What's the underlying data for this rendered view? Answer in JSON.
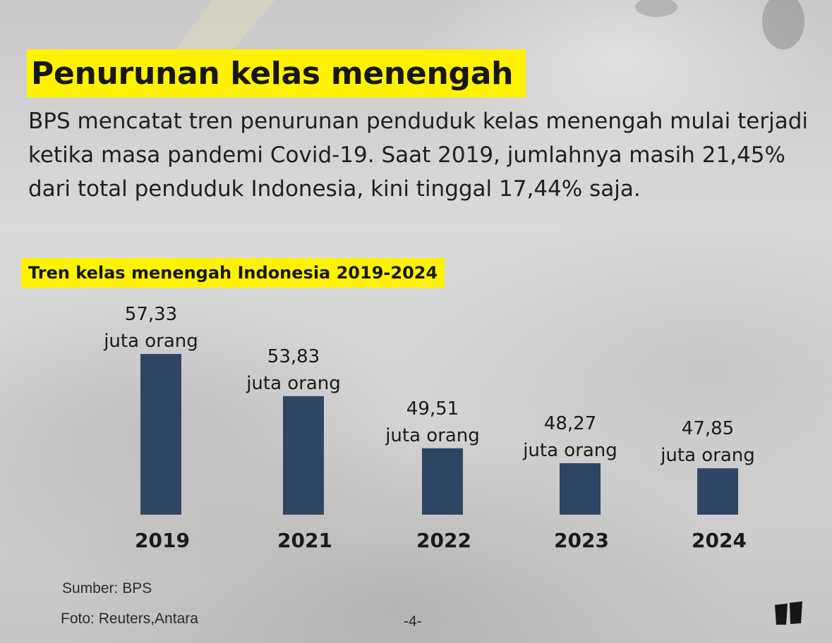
{
  "title": "Penurunan kelas menengah",
  "paragraph": "BPS mencatat tren penurunan penduduk kelas menengah mulai terjadi ketika masa pandemi Covid-19. Saat 2019, jumlahnya masih 21,45% dari total penduduk Indonesia, kini tinggal 17,44% saja.",
  "footer": {
    "source": "Sumber: BPS",
    "photo": "Foto: Reuters,Antara",
    "page": "-4-"
  },
  "colors": {
    "highlight": "#fff200",
    "bar": "#2e4663",
    "text": "#1a1a1a"
  },
  "logo_icon": "publisher-logo-icon",
  "chart_data": {
    "type": "bar",
    "title": "Tren kelas menengah Indonesia 2019-2024",
    "categories": [
      "2019",
      "2021",
      "2022",
      "2023",
      "2024"
    ],
    "values": [
      57.33,
      53.83,
      49.51,
      48.27,
      47.85
    ],
    "value_labels": [
      "57,33",
      "53,83",
      "49,51",
      "48,27",
      "47,85"
    ],
    "unit_label": "juta orang",
    "ylim": [
      44,
      58
    ],
    "grid": false,
    "legend": "none"
  }
}
